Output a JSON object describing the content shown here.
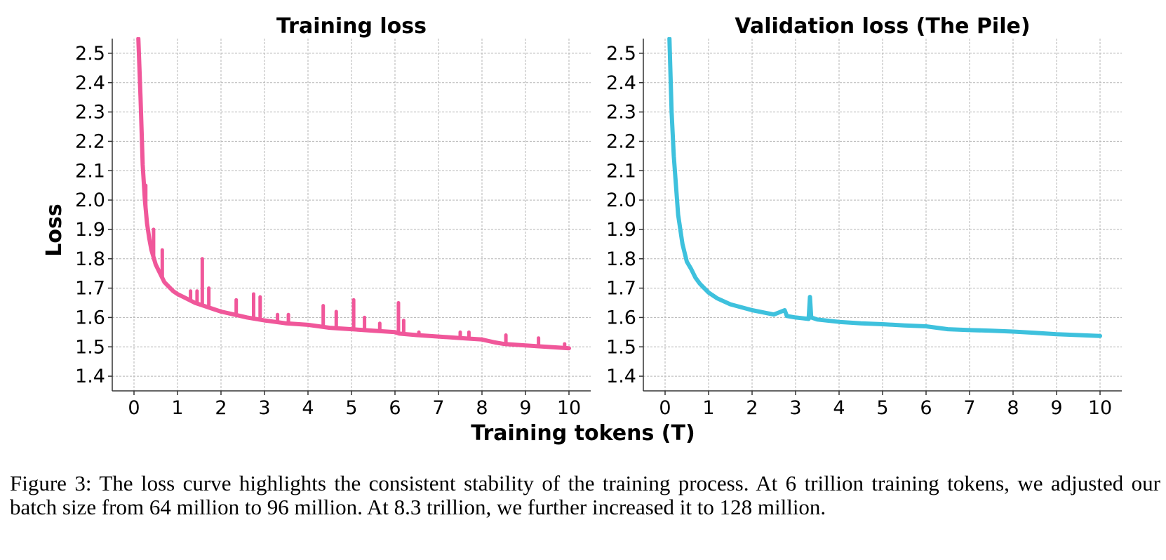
{
  "figure": {
    "shared_xlabel": "Training tokens (T)",
    "shared_ylabel": "Loss",
    "caption": "Figure 3: The loss curve highlights the consistent stability of the training process. At 6 trillion training tokens, we adjusted our batch size from 64 million to 96 million. At 8.3 trillion, we further increased it to 128 million."
  },
  "chart_data": [
    {
      "type": "line",
      "title": "Training loss",
      "xlabel": "Training tokens (T)",
      "ylabel": "Loss",
      "xlim": [
        -0.5,
        10.5
      ],
      "ylim": [
        1.35,
        2.55
      ],
      "xticks": [
        0,
        1,
        2,
        3,
        4,
        5,
        6,
        7,
        8,
        9,
        10
      ],
      "yticks": [
        1.4,
        1.5,
        1.6,
        1.7,
        1.8,
        1.9,
        2.0,
        2.1,
        2.2,
        2.3,
        2.4,
        2.5
      ],
      "ytick_labels": [
        "1.4",
        "1.5",
        "1.6",
        "1.7",
        "1.8",
        "1.9",
        "2.0",
        "2.1",
        "2.2",
        "2.3",
        "2.4",
        "2.5"
      ],
      "grid": true,
      "color": "#f0579a",
      "series": [
        {
          "x": [
            0.1,
            0.15,
            0.2,
            0.25,
            0.3,
            0.35,
            0.4,
            0.5,
            0.6,
            0.7,
            0.8,
            0.9,
            1.0,
            1.2,
            1.4,
            1.6,
            1.8,
            2.0,
            2.3,
            2.6,
            3.0,
            3.5,
            4.0,
            4.5,
            5.0,
            5.5,
            6.0,
            6.1,
            6.5,
            7.0,
            7.5,
            8.0,
            8.3,
            8.5,
            9.0,
            9.5,
            10.0
          ],
          "y": [
            2.55,
            2.35,
            2.12,
            2.0,
            1.92,
            1.87,
            1.83,
            1.78,
            1.75,
            1.72,
            1.705,
            1.69,
            1.68,
            1.665,
            1.65,
            1.64,
            1.63,
            1.62,
            1.61,
            1.6,
            1.59,
            1.58,
            1.575,
            1.565,
            1.56,
            1.555,
            1.55,
            1.545,
            1.54,
            1.535,
            1.53,
            1.525,
            1.515,
            1.51,
            1.505,
            1.5,
            1.495
          ]
        }
      ],
      "spikes": [
        {
          "x": 0.27,
          "y": 2.05
        },
        {
          "x": 0.45,
          "y": 1.9
        },
        {
          "x": 0.65,
          "y": 1.83
        },
        {
          "x": 1.3,
          "y": 1.69
        },
        {
          "x": 1.45,
          "y": 1.69
        },
        {
          "x": 1.57,
          "y": 1.8
        },
        {
          "x": 1.72,
          "y": 1.7
        },
        {
          "x": 2.35,
          "y": 1.66
        },
        {
          "x": 2.75,
          "y": 1.68
        },
        {
          "x": 2.9,
          "y": 1.67
        },
        {
          "x": 3.3,
          "y": 1.61
        },
        {
          "x": 3.55,
          "y": 1.61
        },
        {
          "x": 4.35,
          "y": 1.64
        },
        {
          "x": 4.65,
          "y": 1.62
        },
        {
          "x": 5.05,
          "y": 1.66
        },
        {
          "x": 5.3,
          "y": 1.6
        },
        {
          "x": 5.65,
          "y": 1.58
        },
        {
          "x": 6.08,
          "y": 1.65
        },
        {
          "x": 6.2,
          "y": 1.59
        },
        {
          "x": 6.55,
          "y": 1.55
        },
        {
          "x": 7.5,
          "y": 1.55
        },
        {
          "x": 7.7,
          "y": 1.55
        },
        {
          "x": 8.55,
          "y": 1.54
        },
        {
          "x": 9.3,
          "y": 1.53
        },
        {
          "x": 9.9,
          "y": 1.51
        }
      ]
    },
    {
      "type": "line",
      "title": "Validation loss (The Pile)",
      "xlabel": "Training tokens (T)",
      "ylabel": "Loss",
      "xlim": [
        -0.5,
        10.5
      ],
      "ylim": [
        1.35,
        2.55
      ],
      "xticks": [
        0,
        1,
        2,
        3,
        4,
        5,
        6,
        7,
        8,
        9,
        10
      ],
      "yticks": [
        1.4,
        1.5,
        1.6,
        1.7,
        1.8,
        1.9,
        2.0,
        2.1,
        2.2,
        2.3,
        2.4,
        2.5
      ],
      "ytick_labels": [
        "1.4",
        "1.5",
        "1.6",
        "1.7",
        "1.8",
        "1.9",
        "2.0",
        "2.1",
        "2.2",
        "2.3",
        "2.4",
        "2.5"
      ],
      "grid": true,
      "color": "#3ec1dd",
      "series": [
        {
          "x": [
            0.1,
            0.15,
            0.2,
            0.25,
            0.3,
            0.35,
            0.4,
            0.5,
            0.6,
            0.7,
            0.8,
            0.9,
            1.0,
            1.2,
            1.5,
            2.0,
            2.5,
            2.75,
            2.8,
            3.0,
            3.3,
            3.33,
            3.36,
            3.5,
            4.0,
            4.5,
            5.0,
            5.5,
            6.0,
            6.5,
            7.0,
            7.5,
            8.0,
            8.5,
            9.0,
            9.5,
            10.0
          ],
          "y": [
            2.55,
            2.3,
            2.15,
            2.05,
            1.95,
            1.9,
            1.85,
            1.79,
            1.765,
            1.735,
            1.715,
            1.7,
            1.685,
            1.665,
            1.645,
            1.625,
            1.61,
            1.625,
            1.605,
            1.6,
            1.595,
            1.67,
            1.6,
            1.593,
            1.585,
            1.58,
            1.577,
            1.573,
            1.57,
            1.56,
            1.557,
            1.555,
            1.552,
            1.548,
            1.543,
            1.54,
            1.537
          ]
        }
      ],
      "spikes": []
    }
  ]
}
